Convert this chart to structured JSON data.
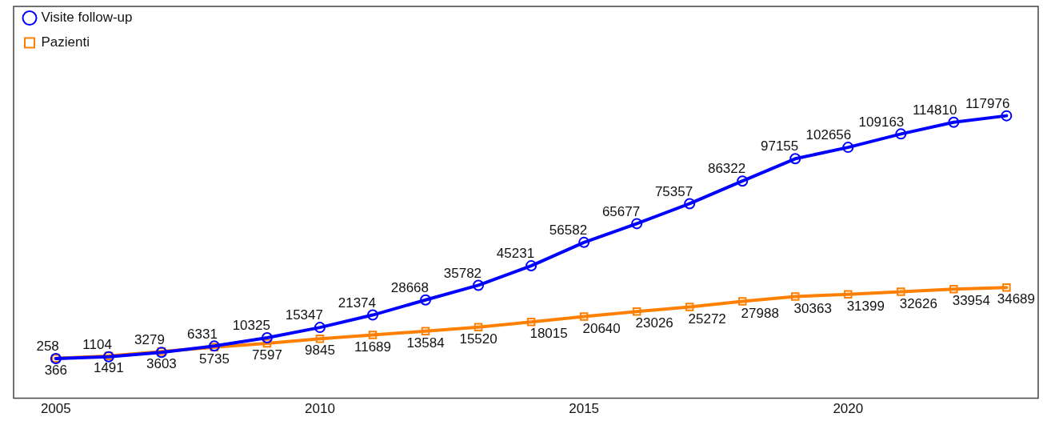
{
  "chart_data": {
    "type": "line",
    "x": [
      2005,
      2006,
      2007,
      2008,
      2009,
      2010,
      2011,
      2012,
      2013,
      2014,
      2015,
      2016,
      2017,
      2018,
      2019,
      2020,
      2021,
      2022,
      2023
    ],
    "series": [
      {
        "name": "Visite follow-up",
        "color": "#0000ff",
        "marker": "circle",
        "values": [
          258,
          1104,
          3279,
          6331,
          10325,
          15347,
          21374,
          28668,
          35782,
          45231,
          56582,
          65677,
          75357,
          86322,
          97155,
          102656,
          109163,
          114810,
          117976
        ]
      },
      {
        "name": "Pazienti",
        "color": "#ff8000",
        "marker": "square",
        "values": [
          366,
          1491,
          3603,
          5735,
          7597,
          9845,
          11689,
          13584,
          15520,
          18015,
          20640,
          23026,
          25272,
          27988,
          30363,
          31399,
          32626,
          33954,
          34689
        ]
      }
    ],
    "xlim": [
      2004.2,
      2023.6
    ],
    "xticks": [
      2005,
      2010,
      2015,
      2020
    ],
    "ylim": [
      -19000,
      171000
    ],
    "tick_labels": "x",
    "grid": false,
    "legend": "top left",
    "data_labels": true,
    "line_style": "solid"
  }
}
